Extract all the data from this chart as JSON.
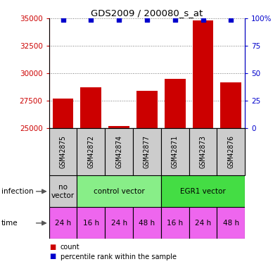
{
  "title": "GDS2009 / 200080_s_at",
  "samples": [
    "GSM42875",
    "GSM42872",
    "GSM42874",
    "GSM42877",
    "GSM42871",
    "GSM42873",
    "GSM42876"
  ],
  "counts": [
    27700,
    28700,
    25200,
    28400,
    29500,
    34800,
    29200
  ],
  "percentiles": [
    99,
    99,
    99,
    99,
    99,
    99,
    99
  ],
  "ylim_left": [
    25000,
    35000
  ],
  "ylim_right": [
    0,
    100
  ],
  "yticks_left": [
    25000,
    27500,
    30000,
    32500,
    35000
  ],
  "yticks_right": [
    0,
    25,
    50,
    75,
    100
  ],
  "yticklabels_right": [
    "0",
    "25",
    "50",
    "75",
    "100%"
  ],
  "infection_groups": [
    {
      "label": "no\nvector",
      "start": 0,
      "end": 1,
      "color": "#cccccc"
    },
    {
      "label": "control vector",
      "start": 1,
      "end": 4,
      "color": "#88ee88"
    },
    {
      "label": "EGR1 vector",
      "start": 4,
      "end": 7,
      "color": "#44dd44"
    }
  ],
  "time_labels": [
    "24 h",
    "16 h",
    "24 h",
    "48 h",
    "16 h",
    "24 h",
    "48 h"
  ],
  "time_color": "#ee66ee",
  "bar_color": "#cc0000",
  "dot_color": "#0000cc",
  "left_tick_color": "#cc0000",
  "right_tick_color": "#0000cc",
  "sample_bg": "#cccccc",
  "grid_color": "#777777",
  "background_color": "#ffffff"
}
